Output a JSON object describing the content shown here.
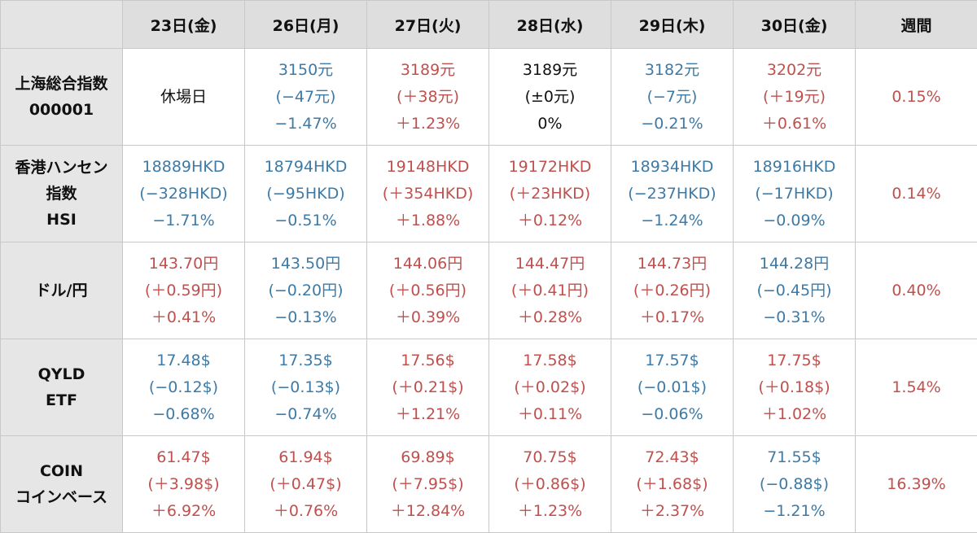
{
  "colors": {
    "up": "#c0504d",
    "down": "#3d7aa6",
    "flat": "#111111",
    "header_bg": "#dedede",
    "rowhead_bg": "#e6e6e6"
  },
  "header": {
    "corner": "",
    "days": [
      "23日(金)",
      "26日(月)",
      "27日(火)",
      "28日(水)",
      "29日(木)",
      "30日(金)"
    ],
    "weekly": "週間"
  },
  "rows": [
    {
      "label": [
        "上海総合指数",
        "000001"
      ],
      "cells": [
        {
          "closed": true,
          "text": "休場日"
        },
        {
          "dir": "down",
          "price": "3150元",
          "change": "(−47元)",
          "pct": "−1.47%"
        },
        {
          "dir": "up",
          "price": "3189元",
          "change": "(＋38元)",
          "pct": "＋1.23%"
        },
        {
          "dir": "flat",
          "price": "3189元",
          "change": "(±0元)",
          "pct": "0%"
        },
        {
          "dir": "down",
          "price": "3182元",
          "change": "(−7元)",
          "pct": "−0.21%"
        },
        {
          "dir": "up",
          "price": "3202元",
          "change": "(＋19元)",
          "pct": "＋0.61%"
        }
      ],
      "weekly": "0.15%"
    },
    {
      "label": [
        "香港ハンセン",
        "指数",
        "HSI"
      ],
      "cells": [
        {
          "dir": "down",
          "price": "18889HKD",
          "change": "(−328HKD)",
          "pct": "−1.71%"
        },
        {
          "dir": "down",
          "price": "18794HKD",
          "change": "(−95HKD)",
          "pct": "−0.51%"
        },
        {
          "dir": "up",
          "price": "19148HKD",
          "change": "(＋354HKD)",
          "pct": "＋1.88%"
        },
        {
          "dir": "up",
          "price": "19172HKD",
          "change": "(＋23HKD)",
          "pct": "＋0.12%"
        },
        {
          "dir": "down",
          "price": "18934HKD",
          "change": "(−237HKD)",
          "pct": "−1.24%"
        },
        {
          "dir": "down",
          "price": "18916HKD",
          "change": "(−17HKD)",
          "pct": "−0.09%"
        }
      ],
      "weekly": "0.14%"
    },
    {
      "label": [
        "ドル/円"
      ],
      "cells": [
        {
          "dir": "up",
          "price": "143.70円",
          "change": "(＋0.59円)",
          "pct": "＋0.41%"
        },
        {
          "dir": "down",
          "price": "143.50円",
          "change": "(−0.20円)",
          "pct": "−0.13%"
        },
        {
          "dir": "up",
          "price": "144.06円",
          "change": "(＋0.56円)",
          "pct": "＋0.39%"
        },
        {
          "dir": "up",
          "price": "144.47円",
          "change": "(＋0.41円)",
          "pct": "＋0.28%"
        },
        {
          "dir": "up",
          "price": "144.73円",
          "change": "(＋0.26円)",
          "pct": "＋0.17%"
        },
        {
          "dir": "down",
          "price": "144.28円",
          "change": "(−0.45円)",
          "pct": "−0.31%"
        }
      ],
      "weekly": "0.40%"
    },
    {
      "label": [
        "QYLD",
        "ETF"
      ],
      "cells": [
        {
          "dir": "down",
          "price": "17.48$",
          "change": "(−0.12$)",
          "pct": "−0.68%"
        },
        {
          "dir": "down",
          "price": "17.35$",
          "change": "(−0.13$)",
          "pct": "−0.74%"
        },
        {
          "dir": "up",
          "price": "17.56$",
          "change": "(＋0.21$)",
          "pct": "＋1.21%"
        },
        {
          "dir": "up",
          "price": "17.58$",
          "change": "(＋0.02$)",
          "pct": "＋0.11%"
        },
        {
          "dir": "down",
          "price": "17.57$",
          "change": "(−0.01$)",
          "pct": "−0.06%"
        },
        {
          "dir": "up",
          "price": "17.75$",
          "change": "(＋0.18$)",
          "pct": "＋1.02%"
        }
      ],
      "weekly": "1.54%"
    },
    {
      "label": [
        "COIN",
        "コインベース"
      ],
      "cells": [
        {
          "dir": "up",
          "price": "61.47$",
          "change": "(＋3.98$)",
          "pct": "＋6.92%"
        },
        {
          "dir": "up",
          "price": "61.94$",
          "change": "(＋0.47$)",
          "pct": "＋0.76%"
        },
        {
          "dir": "up",
          "price": "69.89$",
          "change": "(＋7.95$)",
          "pct": "＋12.84%"
        },
        {
          "dir": "up",
          "price": "70.75$",
          "change": "(＋0.86$)",
          "pct": "＋1.23%"
        },
        {
          "dir": "up",
          "price": "72.43$",
          "change": "(＋1.68$)",
          "pct": "＋2.37%"
        },
        {
          "dir": "down",
          "price": "71.55$",
          "change": "(−0.88$)",
          "pct": "−1.21%"
        }
      ],
      "weekly": "16.39%"
    }
  ]
}
